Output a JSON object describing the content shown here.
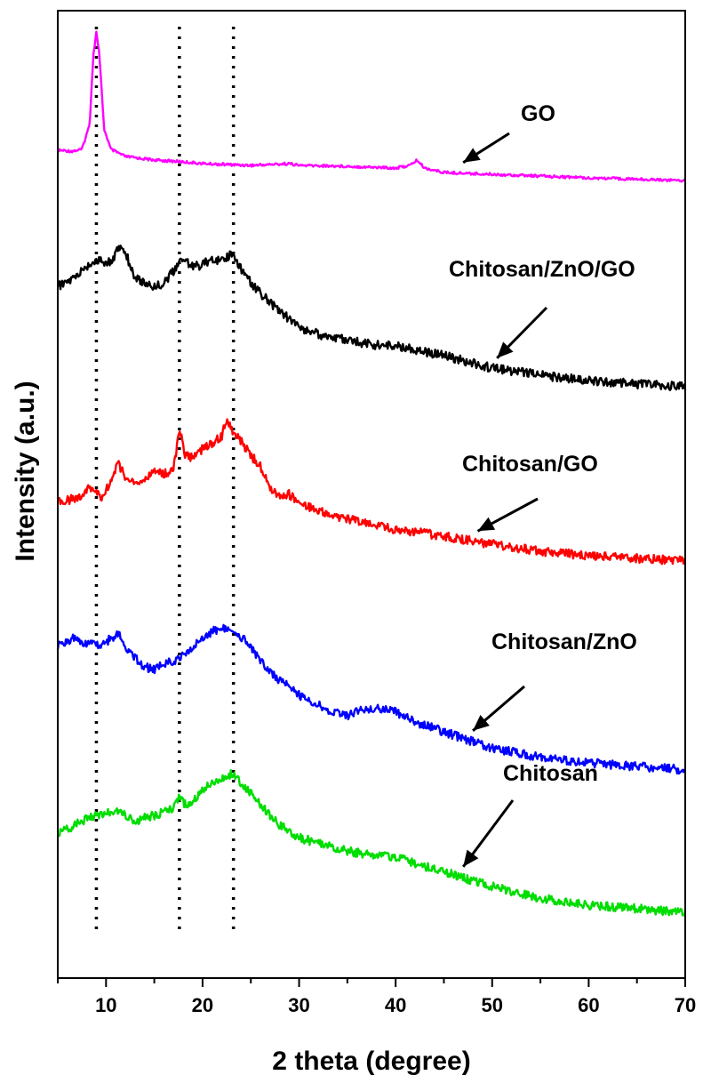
{
  "chart_data": {
    "type": "line",
    "title": "",
    "xlabel": "2 theta (degree)",
    "ylabel": "Intensity (a.u.)",
    "xlim": [
      5,
      70
    ],
    "xticks": [
      10,
      20,
      30,
      40,
      50,
      60,
      70
    ],
    "y_tick_labels": false,
    "y_scale": "arbitrary units, curves vertically offset (stacked)",
    "grid": false,
    "reference_lines_x": [
      9,
      17.6,
      23.2
    ],
    "series": [
      {
        "name": "GO",
        "color": "#ff00ff",
        "points": [
          [
            5,
            169
          ],
          [
            6.5,
            170
          ],
          [
            7.5,
            168
          ],
          [
            8.3,
            140
          ],
          [
            8.7,
            60
          ],
          [
            9.0,
            36
          ],
          [
            9.3,
            60
          ],
          [
            9.8,
            145
          ],
          [
            10.5,
            168
          ],
          [
            12,
            176
          ],
          [
            15,
            180
          ],
          [
            18,
            182
          ],
          [
            20,
            184
          ],
          [
            25,
            186
          ],
          [
            29,
            184
          ],
          [
            30,
            186
          ],
          [
            35,
            187
          ],
          [
            40,
            189
          ],
          [
            41.5,
            186
          ],
          [
            42.2,
            180
          ],
          [
            43,
            189
          ],
          [
            45,
            194
          ],
          [
            50,
            196
          ],
          [
            60,
            200
          ],
          [
            70,
            203
          ]
        ]
      },
      {
        "name": "Chitosan/ZnO/GO",
        "color": "#000000",
        "points": [
          [
            5,
            322
          ],
          [
            6,
            318
          ],
          [
            7,
            310
          ],
          [
            8,
            300
          ],
          [
            9,
            292
          ],
          [
            10,
            297
          ],
          [
            10.8,
            290
          ],
          [
            11.5,
            275
          ],
          [
            12,
            284
          ],
          [
            13,
            312
          ],
          [
            14,
            318
          ],
          [
            15,
            322
          ],
          [
            16,
            318
          ],
          [
            17,
            305
          ],
          [
            18,
            290
          ],
          [
            19,
            300
          ],
          [
            20,
            298
          ],
          [
            21,
            290
          ],
          [
            22,
            294
          ],
          [
            23,
            285
          ],
          [
            24,
            302
          ],
          [
            25,
            318
          ],
          [
            26,
            330
          ],
          [
            28,
            350
          ],
          [
            30,
            368
          ],
          [
            32,
            376
          ],
          [
            35,
            383
          ],
          [
            38,
            388
          ],
          [
            40,
            389
          ],
          [
            42,
            393
          ],
          [
            45,
            400
          ],
          [
            50,
            414
          ],
          [
            55,
            422
          ],
          [
            60,
            428
          ],
          [
            65,
            432
          ],
          [
            70,
            435
          ]
        ]
      },
      {
        "name": "Chitosan/GO",
        "color": "#ff0000",
        "points": [
          [
            5,
            565
          ],
          [
            7,
            560
          ],
          [
            8.5,
            548
          ],
          [
            9.5,
            560
          ],
          [
            10.5,
            542
          ],
          [
            11.2,
            520
          ],
          [
            12,
            536
          ],
          [
            13,
            545
          ],
          [
            14,
            540
          ],
          [
            15,
            530
          ],
          [
            16,
            533
          ],
          [
            17,
            528
          ],
          [
            17.6,
            482
          ],
          [
            18.2,
            512
          ],
          [
            19,
            515
          ],
          [
            20,
            505
          ],
          [
            21,
            498
          ],
          [
            22,
            490
          ],
          [
            22.5,
            471
          ],
          [
            23,
            483
          ],
          [
            24,
            497
          ],
          [
            25,
            512
          ],
          [
            26,
            525
          ],
          [
            27,
            548
          ],
          [
            28,
            558
          ],
          [
            29,
            556
          ],
          [
            30,
            566
          ],
          [
            32,
            575
          ],
          [
            35,
            584
          ],
          [
            38,
            590
          ],
          [
            40,
            596
          ],
          [
            42,
            598
          ],
          [
            45,
            603
          ],
          [
            50,
            612
          ],
          [
            55,
            620
          ],
          [
            60,
            625
          ],
          [
            65,
            628
          ],
          [
            70,
            631
          ]
        ]
      },
      {
        "name": "Chitosan/ZnO",
        "color": "#0000ff",
        "points": [
          [
            5,
            727
          ],
          [
            6.5,
            718
          ],
          [
            8,
            723
          ],
          [
            9.5,
            725
          ],
          [
            10.5,
            718
          ],
          [
            11.3,
            712
          ],
          [
            12,
            726
          ],
          [
            13,
            740
          ],
          [
            14,
            750
          ],
          [
            15,
            753
          ],
          [
            16,
            747
          ],
          [
            17,
            743
          ],
          [
            18,
            738
          ],
          [
            19,
            728
          ],
          [
            20,
            718
          ],
          [
            21,
            710
          ],
          [
            22,
            708
          ],
          [
            23,
            706
          ],
          [
            24,
            716
          ],
          [
            25,
            728
          ],
          [
            26,
            744
          ],
          [
            28,
            765
          ],
          [
            30,
            782
          ],
          [
            33,
            798
          ],
          [
            35,
            806
          ],
          [
            36,
            800
          ],
          [
            38,
            796
          ],
          [
            40,
            801
          ],
          [
            42,
            812
          ],
          [
            45,
            823
          ],
          [
            50,
            841
          ],
          [
            55,
            852
          ],
          [
            60,
            858
          ],
          [
            65,
            862
          ],
          [
            70,
            866
          ]
        ]
      },
      {
        "name": "Chitosan",
        "color": "#00dd00",
        "points": [
          [
            5,
            938
          ],
          [
            6,
            933
          ],
          [
            7,
            926
          ],
          [
            8,
            921
          ],
          [
            9,
            918
          ],
          [
            10,
            916
          ],
          [
            11,
            910
          ],
          [
            12,
            916
          ],
          [
            13,
            923
          ],
          [
            14,
            920
          ],
          [
            15,
            917
          ],
          [
            16,
            913
          ],
          [
            17,
            910
          ],
          [
            17.6,
            897
          ],
          [
            18.2,
            905
          ],
          [
            19,
            900
          ],
          [
            20,
            888
          ],
          [
            21,
            880
          ],
          [
            22,
            875
          ],
          [
            23,
            870
          ],
          [
            24,
            880
          ],
          [
            25,
            893
          ],
          [
            26,
            906
          ],
          [
            28,
            928
          ],
          [
            30,
            942
          ],
          [
            33,
            952
          ],
          [
            36,
            959
          ],
          [
            40,
            964
          ],
          [
            42,
            971
          ],
          [
            45,
            980
          ],
          [
            50,
            997
          ],
          [
            55,
            1010
          ],
          [
            60,
            1018
          ],
          [
            65,
            1022
          ],
          [
            70,
            1026
          ]
        ]
      }
    ],
    "annotations": [
      {
        "text": "GO",
        "series": "GO",
        "x": 47
      },
      {
        "text": "Chitosan/ZnO/GO",
        "series": "Chitosan/ZnO/GO",
        "x": 50.5
      },
      {
        "text": "Chitosan/GO",
        "series": "Chitosan/GO",
        "x": 48.5
      },
      {
        "text": "Chitosan/ZnO",
        "series": "Chitosan/ZnO",
        "x": 48
      },
      {
        "text": "Chitosan",
        "series": "Chitosan",
        "x": 47
      }
    ]
  }
}
